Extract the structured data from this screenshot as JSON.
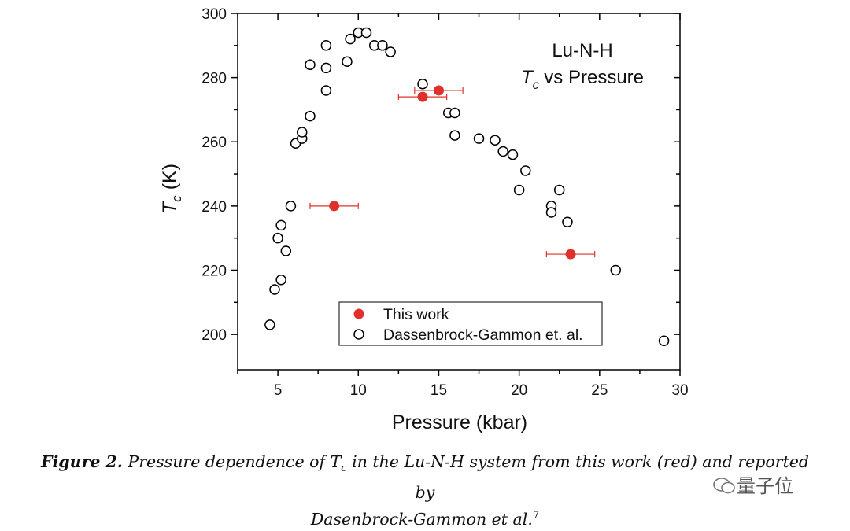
{
  "chart_data": {
    "type": "scatter",
    "title_line1": "Lu-N-H",
    "title_line2_main": "T",
    "title_line2_sub": "c",
    "title_line2_rest": " vs Pressure",
    "xlabel": "Pressure (kbar)",
    "ylabel_main": "T",
    "ylabel_sub": "c",
    "ylabel_rest": " (K)",
    "xlim": [
      2.5,
      30
    ],
    "ylim": [
      189,
      300
    ],
    "xticks": [
      5,
      10,
      15,
      20,
      25,
      30
    ],
    "yticks": [
      200,
      220,
      240,
      260,
      280,
      300
    ],
    "legend_position": "bottom-center",
    "series": [
      {
        "name": "This work",
        "marker": "filled-circle",
        "color": "#e0302a",
        "points": [
          {
            "x": 8.5,
            "y": 240,
            "xerr": 1.5
          },
          {
            "x": 14.0,
            "y": 274,
            "xerr": 1.5
          },
          {
            "x": 15.0,
            "y": 276,
            "xerr": 1.5
          },
          {
            "x": 23.2,
            "y": 225,
            "xerr": 1.5
          }
        ]
      },
      {
        "name": "Dassenbrock-Gammon et. al.",
        "marker": "open-circle",
        "color": "#000000",
        "points": [
          {
            "x": 4.5,
            "y": 203
          },
          {
            "x": 4.8,
            "y": 214
          },
          {
            "x": 5.2,
            "y": 217
          },
          {
            "x": 5.0,
            "y": 230
          },
          {
            "x": 5.5,
            "y": 226
          },
          {
            "x": 5.2,
            "y": 234
          },
          {
            "x": 5.8,
            "y": 240
          },
          {
            "x": 6.1,
            "y": 259.5
          },
          {
            "x": 6.5,
            "y": 261
          },
          {
            "x": 6.5,
            "y": 263
          },
          {
            "x": 7.0,
            "y": 268
          },
          {
            "x": 7.0,
            "y": 284
          },
          {
            "x": 8.0,
            "y": 276
          },
          {
            "x": 8.0,
            "y": 283
          },
          {
            "x": 8.0,
            "y": 290
          },
          {
            "x": 9.3,
            "y": 285
          },
          {
            "x": 9.5,
            "y": 292
          },
          {
            "x": 10.0,
            "y": 294
          },
          {
            "x": 10.5,
            "y": 294
          },
          {
            "x": 11.0,
            "y": 290
          },
          {
            "x": 11.5,
            "y": 290
          },
          {
            "x": 12.0,
            "y": 288
          },
          {
            "x": 14.0,
            "y": 278
          },
          {
            "x": 15.6,
            "y": 269
          },
          {
            "x": 16.0,
            "y": 269
          },
          {
            "x": 16.0,
            "y": 262
          },
          {
            "x": 17.5,
            "y": 261
          },
          {
            "x": 18.5,
            "y": 260.5
          },
          {
            "x": 19.0,
            "y": 257
          },
          {
            "x": 19.6,
            "y": 256
          },
          {
            "x": 20.4,
            "y": 251
          },
          {
            "x": 20.0,
            "y": 245
          },
          {
            "x": 22.0,
            "y": 240
          },
          {
            "x": 22.0,
            "y": 238
          },
          {
            "x": 22.5,
            "y": 245
          },
          {
            "x": 23.0,
            "y": 235
          },
          {
            "x": 26.0,
            "y": 220
          },
          {
            "x": 29.0,
            "y": 198
          }
        ]
      }
    ]
  },
  "caption": {
    "label": "Figure 2.",
    "text_part1": " Pressure dependence of ",
    "tc_main": "T",
    "tc_sub": "c",
    "text_part2": " in the Lu-N-H system from this work (red) and reported by",
    "text_line2": "Dasenbrock-Gammon et al.",
    "ref": "7"
  },
  "watermark": "量子位"
}
